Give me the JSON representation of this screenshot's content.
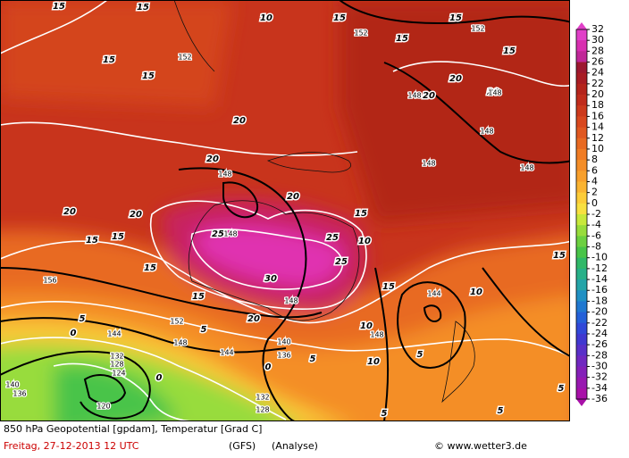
{
  "map": {
    "title": "850 hPa Geopotential [gpdam], Temperatur [Grad C]",
    "date": "Freitag, 27-12-2013  12 UTC",
    "model": "(GFS)",
    "analysis": "(Analyse)",
    "credit": "© www.wetter3.de",
    "colorbar": {
      "ticks": [
        32,
        30,
        28,
        26,
        24,
        22,
        20,
        18,
        16,
        14,
        12,
        10,
        8,
        6,
        4,
        2,
        0,
        -2,
        -4,
        -6,
        -8,
        -10,
        -12,
        -14,
        -16,
        -18,
        -20,
        -22,
        -24,
        -26,
        -28,
        -30,
        -32,
        -34,
        -36
      ],
      "colors": [
        "#e040c8",
        "#d830b0",
        "#c02898",
        "#9c1830",
        "#a81c24",
        "#b4241c",
        "#c02c1c",
        "#cc3a1c",
        "#d8481e",
        "#e05820",
        "#e86a22",
        "#f07c24",
        "#f48e28",
        "#f8a02c",
        "#fab432",
        "#fccc38",
        "#f8e040",
        "#c8e83c",
        "#98dc3c",
        "#6cd040",
        "#48c448",
        "#30b868",
        "#28b088",
        "#24a4a8",
        "#2090c4",
        "#2078d0",
        "#2460d8",
        "#3048d8",
        "#4038d0",
        "#5830c8",
        "#7028c0",
        "#8420b8",
        "#9818b0",
        "#a810a8"
      ]
    },
    "temperature_labels": [
      15,
      15,
      10,
      15,
      15,
      15,
      15,
      15,
      15,
      20,
      20,
      20,
      20,
      20,
      20,
      20,
      20,
      15,
      25,
      25,
      25,
      30,
      15,
      15,
      15,
      15,
      15,
      10,
      20,
      5,
      5,
      0,
      0,
      0,
      5,
      10,
      5,
      10,
      15,
      5,
      5,
      5,
      10
    ],
    "geopotential_labels": [
      152,
      152,
      152,
      148,
      148,
      148,
      148,
      148,
      148,
      148,
      148,
      148,
      144,
      144,
      144,
      152,
      148,
      140,
      136,
      132,
      128,
      124,
      120,
      140,
      136,
      132,
      128,
      156
    ]
  }
}
